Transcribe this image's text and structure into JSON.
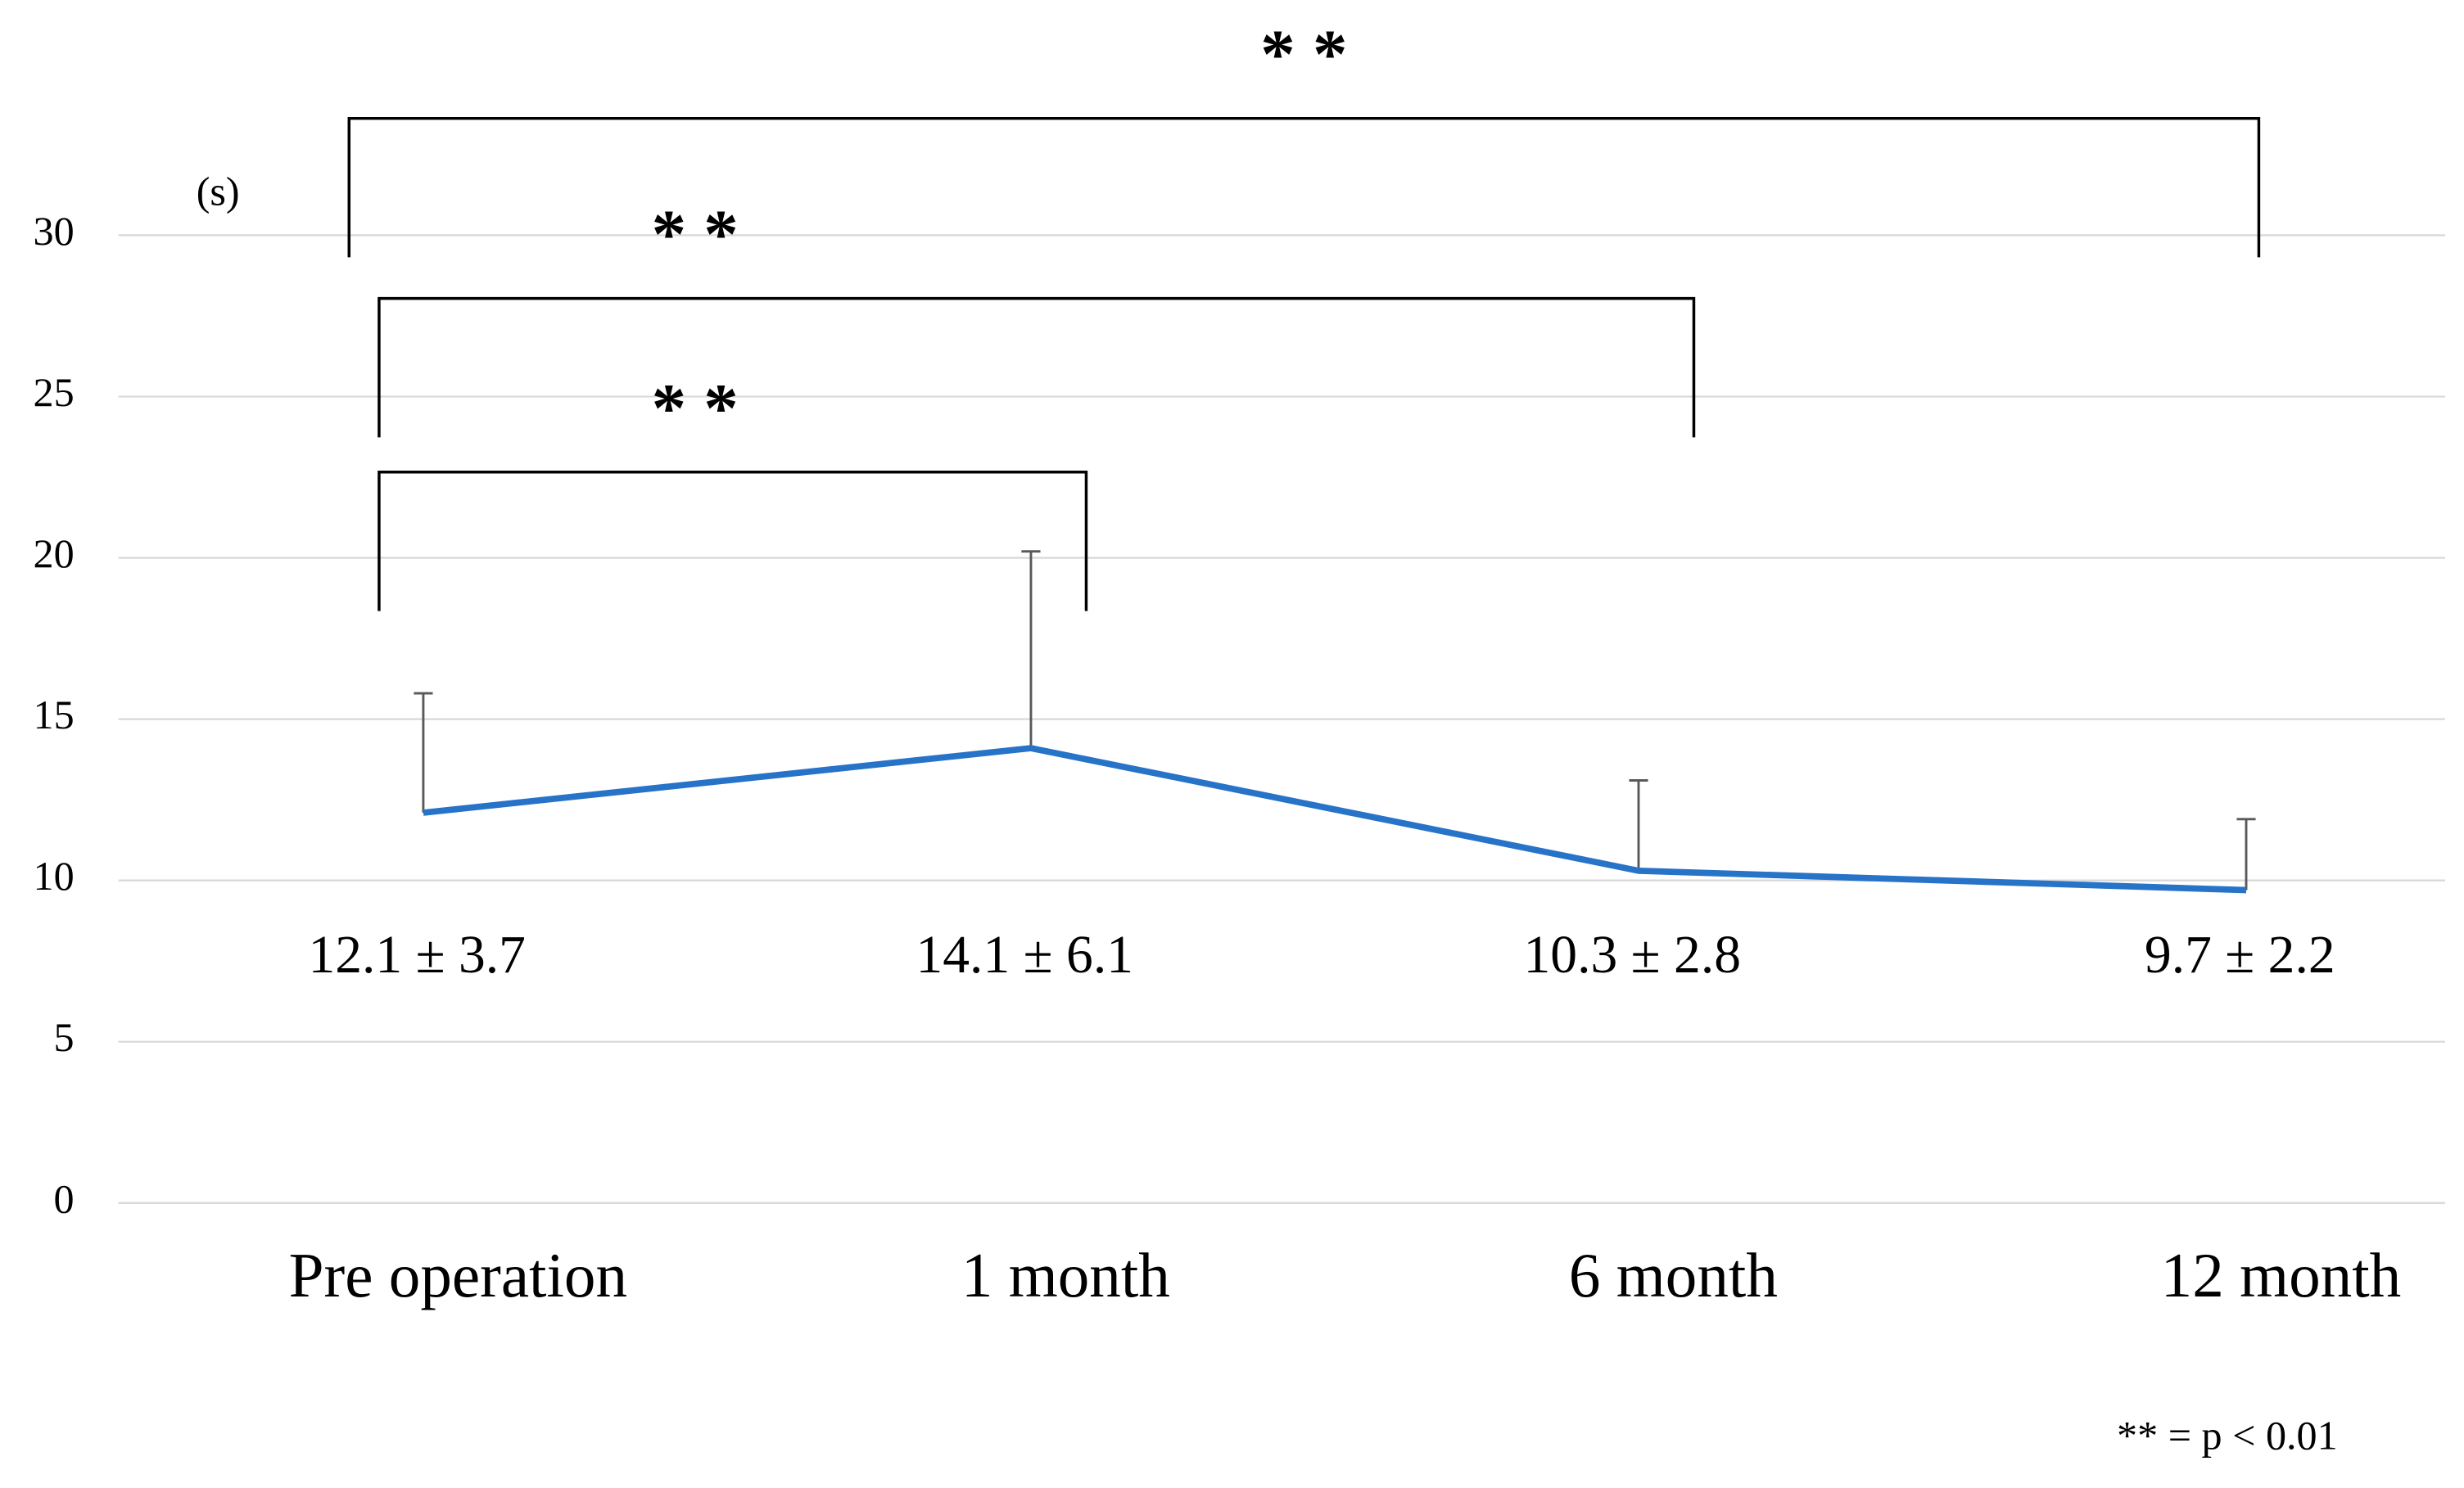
{
  "chart_data": {
    "type": "line",
    "unit_label": "(s)",
    "categories": [
      "Pre operation",
      "1 month",
      "6 month",
      "12 month"
    ],
    "series": [
      {
        "color": "#2773c8",
        "values": [
          12.1,
          14.1,
          10.3,
          9.7
        ],
        "errors": [
          3.7,
          6.1,
          2.8,
          2.2
        ],
        "value_labels": [
          "12.1 ± 3.7",
          "14.1 ± 6.1",
          "10.3 ± 2.8",
          "9.7 ± 2.2"
        ]
      }
    ],
    "ylim": [
      0,
      30
    ],
    "yticks": [
      0,
      5,
      10,
      15,
      20,
      25,
      30
    ],
    "grid": true,
    "comparisons": [
      {
        "between": [
          "Pre operation",
          "1 month"
        ],
        "label": "* *"
      },
      {
        "between": [
          "Pre operation",
          "6 month"
        ],
        "label": "* *"
      },
      {
        "between": [
          "Pre operation",
          "12 month"
        ],
        "label": "* *"
      }
    ],
    "footnote": "** = p < 0.01"
  }
}
